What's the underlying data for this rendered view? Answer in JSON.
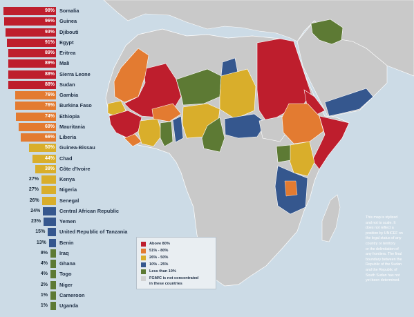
{
  "colors": {
    "ocean": "#ccdbe6",
    "land_other": "#c9c9c9",
    "land_border": "#ffffff",
    "above80": "#be1e2d",
    "r51_80": "#e37b31",
    "r26_50": "#d9ae2b",
    "r10_25": "#35578e",
    "below10": "#5d7a34",
    "not_concentrated": "#d2d2d2"
  },
  "chart_data": {
    "type": "bar",
    "orientation": "horizontal",
    "unit": "%",
    "rows": [
      {
        "country": "Somalia",
        "label": "98%",
        "value": 98,
        "band": "above80"
      },
      {
        "country": "Guinea",
        "label": "96%",
        "value": 96,
        "band": "above80"
      },
      {
        "country": "Djibouti",
        "label": "93%",
        "value": 93,
        "band": "above80"
      },
      {
        "country": "Egypt",
        "label": "91%",
        "value": 91,
        "band": "above80"
      },
      {
        "country": "Eritrea",
        "label": "89%",
        "value": 89,
        "band": "above80"
      },
      {
        "country": "Mali",
        "label": "89%",
        "value": 89,
        "band": "above80"
      },
      {
        "country": "Sierra Leone",
        "label": "88%",
        "value": 88,
        "band": "above80"
      },
      {
        "country": "Sudan",
        "label": "88%",
        "value": 88,
        "band": "above80"
      },
      {
        "country": "Gambia",
        "label": "76%",
        "value": 76,
        "band": "r51_80"
      },
      {
        "country": "Burkina Faso",
        "label": "76%",
        "value": 76,
        "band": "r51_80"
      },
      {
        "country": "Ethiopia",
        "label": "74%",
        "value": 74,
        "band": "r51_80"
      },
      {
        "country": "Mauritania",
        "label": "69%",
        "value": 69,
        "band": "r51_80"
      },
      {
        "country": "Liberia",
        "label": "66%",
        "value": 66,
        "band": "r51_80"
      },
      {
        "country": "Guinea-Bissau",
        "label": "50%",
        "value": 50,
        "band": "r26_50"
      },
      {
        "country": "Chad",
        "label": "44%",
        "value": 44,
        "band": "r26_50"
      },
      {
        "country": "Côte d'Ivoire",
        "label": "38%",
        "value": 38,
        "band": "r26_50"
      },
      {
        "country": "Kenya",
        "label": "27%",
        "value": 27,
        "band": "r26_50"
      },
      {
        "country": "Nigeria",
        "label": "27%",
        "value": 27,
        "band": "r26_50"
      },
      {
        "country": "Senegal",
        "label": "26%",
        "value": 26,
        "band": "r26_50"
      },
      {
        "country": "Central African Republic",
        "label": "24%",
        "value": 24,
        "band": "r10_25"
      },
      {
        "country": "Yemen",
        "label": "23%",
        "value": 23,
        "band": "r10_25"
      },
      {
        "country": "United Republic of Tanzania",
        "label": "15%",
        "value": 15,
        "band": "r10_25"
      },
      {
        "country": "Benin",
        "label": "13%",
        "value": 13,
        "band": "r10_25"
      },
      {
        "country": "Iraq",
        "label": "8%",
        "value": 8,
        "band": "below10"
      },
      {
        "country": "Ghana",
        "label": "4%",
        "value": 4,
        "band": "below10"
      },
      {
        "country": "Togo",
        "label": "4%",
        "value": 4,
        "band": "below10"
      },
      {
        "country": "Niger",
        "label": "2%",
        "value": 2,
        "band": "below10"
      },
      {
        "country": "Cameroon",
        "label": "1%",
        "value": 1,
        "band": "below10"
      },
      {
        "country": "Uganda",
        "label": "1%",
        "value": 1,
        "band": "below10"
      }
    ]
  },
  "legend": [
    {
      "key": "above80",
      "label": "Above 80%"
    },
    {
      "key": "r51_80",
      "label": "51% - 80%"
    },
    {
      "key": "r26_50",
      "label": "26% - 50%"
    },
    {
      "key": "r10_25",
      "label": "10% - 25%"
    },
    {
      "key": "below10",
      "label": "Less than 10%"
    },
    {
      "key": "not_concentrated",
      "label": "FGM/C is not concentrated",
      "label2": "in these countries"
    }
  ],
  "note": {
    "lines": [
      "This map is stylized",
      "and not to scale. It",
      "does not reflect a",
      "position by UNICEF on",
      "the legal status of any",
      "country or territory",
      "or the delimitation of",
      "any frontiers. The final",
      "boundary between the",
      "Republic of the Sudan",
      "and the Republic of",
      "South Sudan has not",
      "yet been determined."
    ]
  }
}
